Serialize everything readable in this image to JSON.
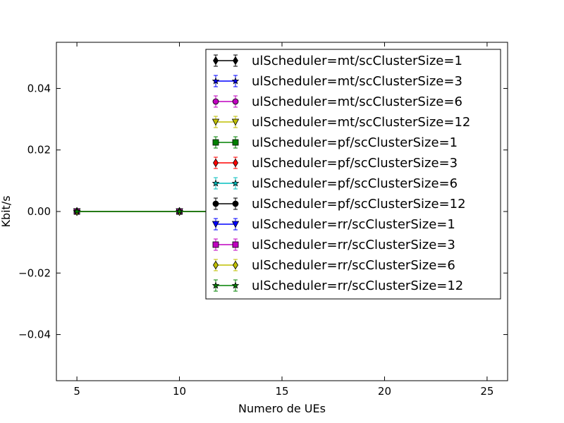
{
  "chart_data": {
    "type": "line",
    "title": "",
    "xlabel": "Numero de UEs",
    "ylabel": "Kbit/s",
    "xlim": [
      4,
      26
    ],
    "ylim": [
      -0.055,
      0.055
    ],
    "xticks": [
      5,
      10,
      15,
      20,
      25
    ],
    "yticks": [
      -0.04,
      -0.02,
      0.0,
      0.02,
      0.04
    ],
    "ytick_labels": [
      "−0.04",
      "−0.02",
      "0.00",
      "0.02",
      "0.04"
    ],
    "grid": false,
    "legend_position": "top-right",
    "x": [
      5,
      10,
      15,
      20,
      25
    ],
    "series": [
      {
        "name": "ulScheduler=mt/scClusterSize=1",
        "color": "#000000",
        "marker": "diamond",
        "values": [
          0,
          0,
          0,
          0,
          0
        ]
      },
      {
        "name": "ulScheduler=mt/scClusterSize=3",
        "color": "#0000ff",
        "marker": "star",
        "values": [
          0,
          0,
          0,
          0,
          0
        ]
      },
      {
        "name": "ulScheduler=mt/scClusterSize=6",
        "color": "#bf00bf",
        "marker": "circle",
        "values": [
          0,
          0,
          0,
          0,
          0
        ]
      },
      {
        "name": "ulScheduler=mt/scClusterSize=12",
        "color": "#bfbf00",
        "marker": "triangle-down",
        "values": [
          0,
          0,
          0,
          0,
          0
        ]
      },
      {
        "name": "ulScheduler=pf/scClusterSize=1",
        "color": "#008000",
        "marker": "square",
        "values": [
          0,
          0,
          0,
          0,
          0
        ]
      },
      {
        "name": "ulScheduler=pf/scClusterSize=3",
        "color": "#ff0000",
        "marker": "diamond",
        "values": [
          0,
          0,
          0,
          0,
          0
        ]
      },
      {
        "name": "ulScheduler=pf/scClusterSize=6",
        "color": "#00bfbf",
        "marker": "star",
        "values": [
          0,
          0,
          0,
          0,
          0
        ]
      },
      {
        "name": "ulScheduler=pf/scClusterSize=12",
        "color": "#000000",
        "marker": "circle",
        "values": [
          0,
          0,
          0,
          0,
          0
        ]
      },
      {
        "name": "ulScheduler=rr/scClusterSize=1",
        "color": "#0000ff",
        "marker": "triangle-down",
        "values": [
          0,
          0,
          0,
          0,
          0
        ]
      },
      {
        "name": "ulScheduler=rr/scClusterSize=3",
        "color": "#bf00bf",
        "marker": "square",
        "values": [
          0,
          0,
          0,
          0,
          0
        ]
      },
      {
        "name": "ulScheduler=rr/scClusterSize=6",
        "color": "#bfbf00",
        "marker": "diamond",
        "values": [
          0,
          0,
          0,
          0,
          0
        ]
      },
      {
        "name": "ulScheduler=rr/scClusterSize=12",
        "color": "#008000",
        "marker": "star",
        "values": [
          0,
          0,
          0,
          0,
          0
        ]
      }
    ]
  }
}
